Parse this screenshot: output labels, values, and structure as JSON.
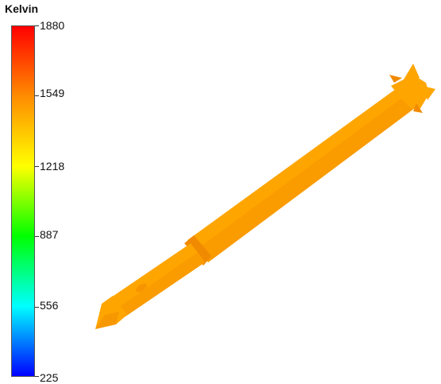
{
  "legend": {
    "title": "Kelvin",
    "unit": "K",
    "min": 225,
    "max": 1880,
    "ticks": [
      "1880",
      "1549",
      "1218",
      "887",
      "556",
      "225"
    ],
    "gradient_colors": [
      "#ff0000",
      "#ff8c00",
      "#ffff00",
      "#00ff00",
      "#00ffff",
      "#0000ff"
    ]
  },
  "model": {
    "fill_color": "#ffa500",
    "shade_color": "#f08a00"
  }
}
